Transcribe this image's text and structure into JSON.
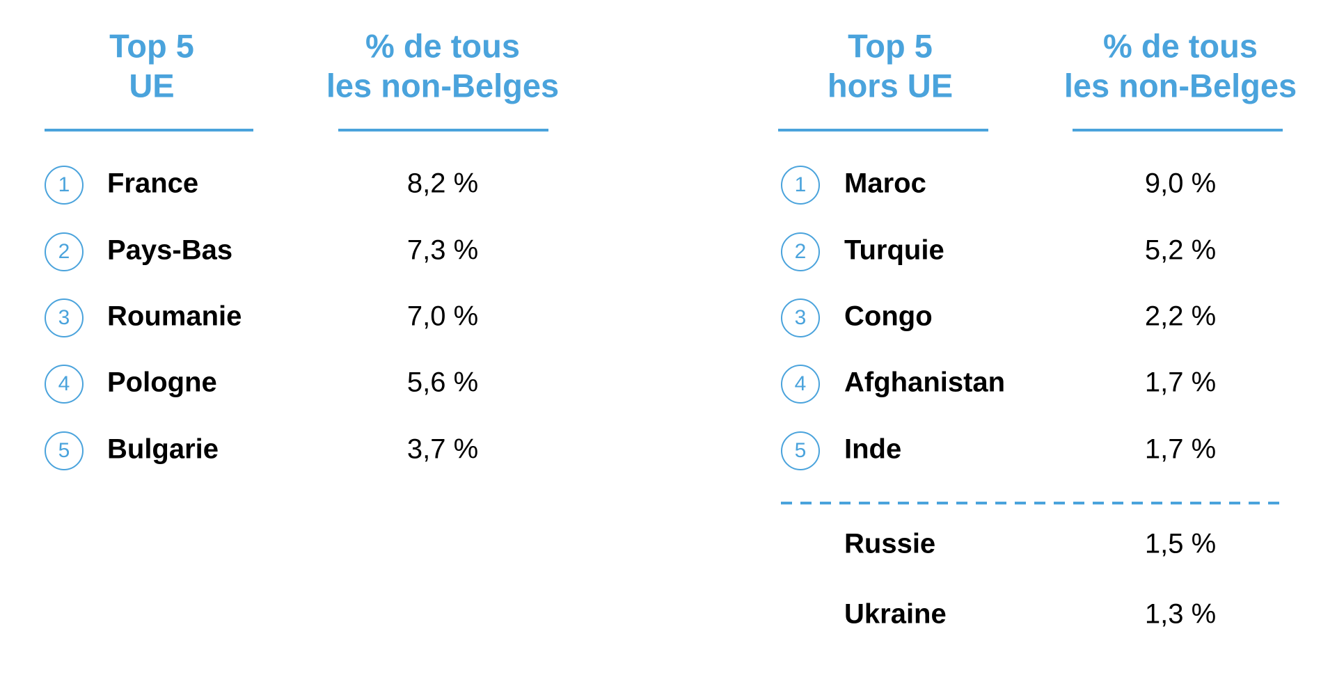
{
  "tables": [
    {
      "headers": [
        [
          "Top 5",
          "UE"
        ],
        [
          "% de tous",
          "les non-Belges"
        ]
      ],
      "rows": [
        {
          "rank": "1",
          "name": "France",
          "value": "8,2 %"
        },
        {
          "rank": "2",
          "name": "Pays-Bas",
          "value": "7,3 %"
        },
        {
          "rank": "3",
          "name": "Roumanie",
          "value": "7,0 %"
        },
        {
          "rank": "4",
          "name": "Pologne",
          "value": "5,6 %"
        },
        {
          "rank": "5",
          "name": "Bulgarie",
          "value": "3,7 %"
        }
      ],
      "extra_rows": []
    },
    {
      "headers": [
        [
          "Top 5",
          "hors UE"
        ],
        [
          "% de tous",
          "les non-Belges"
        ]
      ],
      "rows": [
        {
          "rank": "1",
          "name": "Maroc",
          "value": "9,0 %"
        },
        {
          "rank": "2",
          "name": "Turquie",
          "value": "5,2 %"
        },
        {
          "rank": "3",
          "name": "Congo",
          "value": "2,2 %"
        },
        {
          "rank": "4",
          "name": "Afghanistan",
          "value": "1,7 %"
        },
        {
          "rank": "5",
          "name": "Inde",
          "value": "1,7 %"
        }
      ],
      "extra_rows": [
        {
          "name": "Russie",
          "value": "1,5 %"
        },
        {
          "name": "Ukraine",
          "value": "1,3 %"
        }
      ]
    }
  ]
}
